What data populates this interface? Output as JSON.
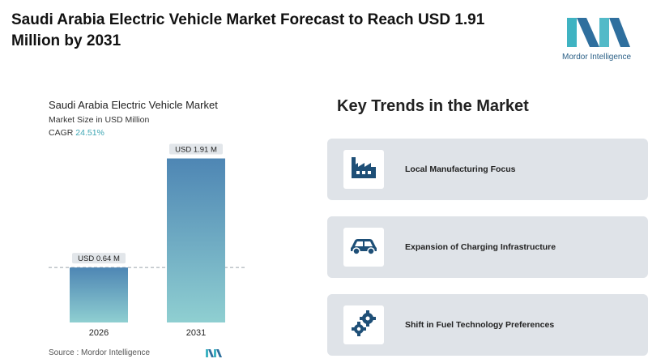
{
  "header": {
    "title": "Saudi Arabia Electric Vehicle Market Forecast to Reach USD 1.91 Million by 2031",
    "logo_text": "Mordor Intelligence"
  },
  "chart": {
    "title": "Saudi Arabia Electric Vehicle Market",
    "subtitle": "Market Size in USD Million",
    "cagr_label": "CAGR",
    "cagr_value": "24.51%",
    "source": "Source : Mordor Intelligence"
  },
  "chart_data": {
    "type": "bar",
    "title": "Saudi Arabia Electric Vehicle Market",
    "ylabel": "Market Size in USD Million",
    "categories": [
      "2026",
      "2031"
    ],
    "values": [
      0.64,
      1.91
    ],
    "data_labels": [
      "USD 0.64 M",
      "USD 1.91 M"
    ],
    "ylim": [
      0,
      2.0
    ],
    "grid": false,
    "reference_line": 0.64
  },
  "trends": {
    "title": "Key Trends in the Market",
    "items": [
      {
        "label": "Local Manufacturing Focus",
        "icon": "factory-icon"
      },
      {
        "label": "Expansion of Charging Infrastructure",
        "icon": "car-icon"
      },
      {
        "label": "Shift in Fuel Technology Preferences",
        "icon": "gears-icon"
      }
    ]
  },
  "colors": {
    "bar_top": "#4e86b4",
    "bar_bottom": "#8fcfd1",
    "cagr": "#3ea6b3",
    "icon": "#1e4f77",
    "card_bg": "#dfe3e8"
  }
}
